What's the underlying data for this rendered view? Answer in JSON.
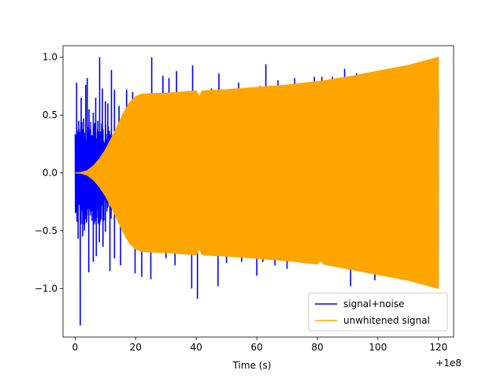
{
  "chart_data": {
    "type": "line",
    "title": "",
    "xlabel": "Time (s)",
    "ylabel": "",
    "x_offset_text": "+1e8",
    "xlim": [
      -4,
      125
    ],
    "ylim": [
      -1.42,
      1.1
    ],
    "x_ticks": [
      0,
      20,
      40,
      60,
      80,
      100,
      120
    ],
    "y_ticks": [
      1.0,
      0.5,
      0.0,
      -0.5,
      -1.0
    ],
    "y_tick_labels": [
      "1.0",
      "0.5",
      "0.0",
      "−0.5",
      "−1.0"
    ],
    "grid": false,
    "legend_position": "lower-right",
    "series": [
      {
        "name": "signal+noise",
        "color": "#0000ff",
        "x_range": [
          0,
          120
        ],
        "spikes_upper": [
          [
            0.5,
            0.78
          ],
          [
            1.2,
            0.45
          ],
          [
            2.0,
            0.65
          ],
          [
            2.8,
            0.47
          ],
          [
            3.5,
            0.76
          ],
          [
            4.0,
            0.82
          ],
          [
            4.6,
            0.55
          ],
          [
            5.0,
            0.3
          ],
          [
            6.0,
            0.52
          ],
          [
            6.8,
            0.65
          ],
          [
            7.5,
            0.45
          ],
          [
            8.1,
            1.0
          ],
          [
            9.0,
            0.73
          ],
          [
            10.0,
            0.62
          ],
          [
            10.8,
            0.6
          ],
          [
            12.0,
            0.89
          ],
          [
            13.0,
            0.72
          ],
          [
            14.5,
            0.58
          ],
          [
            17.0,
            0.72
          ],
          [
            19.0,
            0.7
          ],
          [
            25.3,
            1.0
          ],
          [
            29.0,
            0.84
          ],
          [
            31.0,
            0.82
          ],
          [
            33.5,
            0.88
          ],
          [
            38.8,
            0.93
          ],
          [
            45.0,
            0.73
          ],
          [
            47.5,
            0.86
          ],
          [
            54.0,
            0.78
          ],
          [
            61.0,
            0.75
          ],
          [
            63.0,
            0.94
          ],
          [
            67.0,
            0.8
          ],
          [
            72.5,
            0.82
          ],
          [
            79.0,
            0.83
          ],
          [
            81.5,
            0.83
          ],
          [
            85.0,
            0.83
          ],
          [
            89.0,
            0.9
          ],
          [
            93.0,
            0.86
          ]
        ],
        "spikes_lower": [
          [
            0.3,
            -0.32
          ],
          [
            1.0,
            -0.57
          ],
          [
            1.7,
            -1.32
          ],
          [
            2.5,
            -0.55
          ],
          [
            3.1,
            -0.5
          ],
          [
            3.7,
            -0.39
          ],
          [
            4.5,
            -0.86
          ],
          [
            5.5,
            -0.3
          ],
          [
            6.0,
            -0.77
          ],
          [
            7.0,
            -0.72
          ],
          [
            8.0,
            -0.6
          ],
          [
            9.2,
            -0.64
          ],
          [
            10.0,
            -0.51
          ],
          [
            11.5,
            -0.85
          ],
          [
            13.0,
            -0.74
          ],
          [
            15.0,
            -0.8
          ],
          [
            19.8,
            -0.87
          ],
          [
            22.0,
            -0.9
          ],
          [
            25.0,
            -0.92
          ],
          [
            30.0,
            -0.74
          ],
          [
            33.0,
            -0.8
          ],
          [
            38.5,
            -1.0
          ],
          [
            40.4,
            -1.09
          ],
          [
            47.2,
            -0.98
          ],
          [
            50.0,
            -0.78
          ],
          [
            55.0,
            -0.77
          ],
          [
            60.0,
            -0.89
          ],
          [
            62.0,
            -0.77
          ],
          [
            66.0,
            -0.8
          ],
          [
            70.0,
            -0.83
          ],
          [
            84.0,
            -0.8
          ],
          [
            91.0,
            -0.98
          ],
          [
            99.0,
            -0.93
          ]
        ]
      },
      {
        "name": "unwhitened signal",
        "color": "#ffa500",
        "x_range": [
          0,
          120
        ],
        "envelope_upper": [
          [
            0,
            0.0
          ],
          [
            2,
            0.005
          ],
          [
            4,
            0.02
          ],
          [
            6,
            0.06
          ],
          [
            8,
            0.12
          ],
          [
            10,
            0.2
          ],
          [
            12,
            0.3
          ],
          [
            14,
            0.41
          ],
          [
            16,
            0.52
          ],
          [
            18,
            0.61
          ],
          [
            20,
            0.66
          ],
          [
            22,
            0.68
          ],
          [
            25,
            0.685
          ],
          [
            30,
            0.69
          ],
          [
            35,
            0.7
          ],
          [
            40,
            0.71
          ],
          [
            41,
            0.66
          ],
          [
            42,
            0.71
          ],
          [
            50,
            0.72
          ],
          [
            60,
            0.74
          ],
          [
            70,
            0.76
          ],
          [
            80,
            0.79
          ],
          [
            90,
            0.83
          ],
          [
            100,
            0.88
          ],
          [
            110,
            0.93
          ],
          [
            120,
            1.0
          ]
        ],
        "envelope_lower": [
          [
            0,
            0.0
          ],
          [
            2,
            -0.005
          ],
          [
            4,
            -0.02
          ],
          [
            6,
            -0.06
          ],
          [
            8,
            -0.12
          ],
          [
            10,
            -0.2
          ],
          [
            12,
            -0.3
          ],
          [
            14,
            -0.41
          ],
          [
            16,
            -0.52
          ],
          [
            18,
            -0.61
          ],
          [
            20,
            -0.66
          ],
          [
            22,
            -0.68
          ],
          [
            25,
            -0.685
          ],
          [
            30,
            -0.69
          ],
          [
            35,
            -0.7
          ],
          [
            40,
            -0.71
          ],
          [
            41,
            -0.66
          ],
          [
            42,
            -0.71
          ],
          [
            50,
            -0.72
          ],
          [
            60,
            -0.74
          ],
          [
            70,
            -0.76
          ],
          [
            80,
            -0.79
          ],
          [
            81,
            -0.76
          ],
          [
            82,
            -0.79
          ],
          [
            90,
            -0.83
          ],
          [
            100,
            -0.88
          ],
          [
            110,
            -0.93
          ],
          [
            120,
            -1.0
          ]
        ]
      }
    ]
  }
}
